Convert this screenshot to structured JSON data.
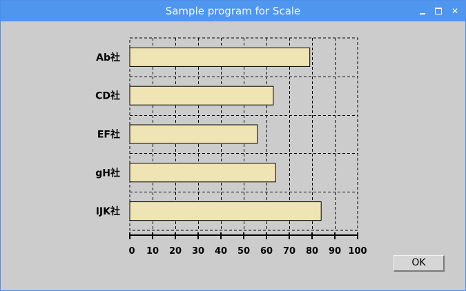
{
  "window": {
    "title": "Sample program for Scale"
  },
  "dialog": {
    "ok_label": "OK"
  },
  "colors": {
    "bar_fill": "#efe4b4",
    "bar_stroke": "#000000",
    "title_bar": "#4f96ef",
    "background": "#cccccc"
  },
  "icons": {
    "minimize": "minimize-icon",
    "maximize": "maximize-icon",
    "close": "close-icon"
  },
  "chart_data": {
    "type": "bar",
    "orientation": "horizontal",
    "categories": [
      "Ab社",
      "CD社",
      "EF社",
      "gH社",
      "IJK社"
    ],
    "values": [
      79,
      63,
      56,
      64,
      84
    ],
    "xlim": [
      0,
      100
    ],
    "xticks": [
      0,
      10,
      20,
      30,
      40,
      50,
      60,
      70,
      80,
      90,
      100
    ],
    "grid": true,
    "title": "",
    "xlabel": "",
    "ylabel": ""
  }
}
